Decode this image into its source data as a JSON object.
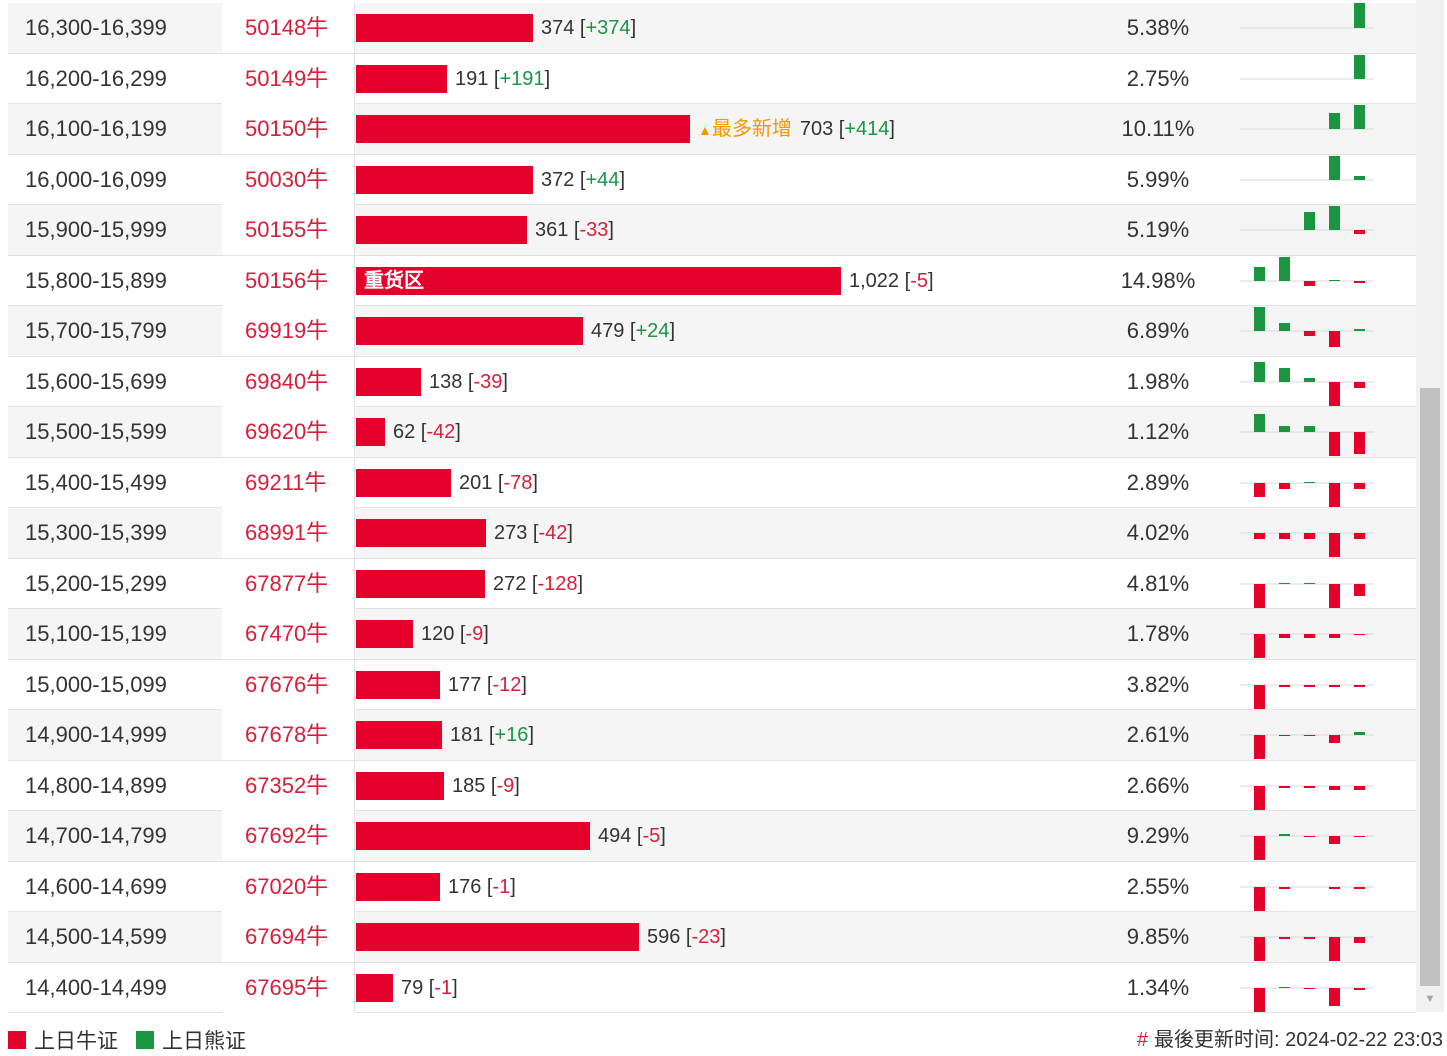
{
  "colors": {
    "bull": "#e5002b",
    "bear": "#1a9641",
    "code": "#d81e3a",
    "increase_tag": "#f39800"
  },
  "heavy_zone_label": "重货区",
  "most_new_label": "最多新增",
  "legend": {
    "bull": "上日牛证",
    "bear": "上日熊证"
  },
  "updated": {
    "hash": "#",
    "label": "最後更新时间:",
    "time": "2024-02-22 23:03"
  },
  "rows": [
    {
      "range": "16,300-16,399",
      "code": "50148牛",
      "count": "374",
      "change": "+374",
      "pct": "5.38%",
      "value": 374,
      "spark": [
        0,
        0,
        0,
        0,
        26
      ]
    },
    {
      "range": "16,200-16,299",
      "code": "50149牛",
      "count": "191",
      "change": "+191",
      "pct": "2.75%",
      "value": 191,
      "spark": [
        0,
        0,
        0,
        0,
        24
      ]
    },
    {
      "range": "16,100-16,199",
      "code": "50150牛",
      "count": "703",
      "change": "+414",
      "pct": "10.11%",
      "value": 703,
      "spark": [
        0,
        0,
        0,
        16,
        24
      ],
      "tag": "most_new"
    },
    {
      "range": "16,000-16,099",
      "code": "50030牛",
      "count": "372",
      "change": "+44",
      "pct": "5.99%",
      "value": 372,
      "spark": [
        0,
        0,
        0,
        24,
        4
      ]
    },
    {
      "range": "15,900-15,999",
      "code": "50155牛",
      "count": "361",
      "change": "-33",
      "pct": "5.19%",
      "value": 361,
      "spark": [
        0,
        0,
        18,
        24,
        -4
      ]
    },
    {
      "range": "15,800-15,899",
      "code": "50156牛",
      "count": "1,022",
      "change": "-5",
      "pct": "14.98%",
      "value": 1022,
      "spark": [
        14,
        24,
        -5,
        1,
        -2
      ],
      "tag": "heavy"
    },
    {
      "range": "15,700-15,799",
      "code": "69919牛",
      "count": "479",
      "change": "+24",
      "pct": "6.89%",
      "value": 479,
      "spark": [
        24,
        8,
        -5,
        -16,
        2
      ]
    },
    {
      "range": "15,600-15,699",
      "code": "69840牛",
      "count": "138",
      "change": "-39",
      "pct": "1.98%",
      "value": 138,
      "spark": [
        20,
        14,
        4,
        -24,
        -6
      ]
    },
    {
      "range": "15,500-15,599",
      "code": "69620牛",
      "count": "62",
      "change": "-42",
      "pct": "1.12%",
      "value": 62,
      "spark": [
        18,
        6,
        6,
        -24,
        -22
      ]
    },
    {
      "range": "15,400-15,499",
      "code": "69211牛",
      "count": "201",
      "change": "-78",
      "pct": "2.89%",
      "value": 201,
      "spark": [
        -14,
        -6,
        1,
        -24,
        -6
      ]
    },
    {
      "range": "15,300-15,399",
      "code": "68991牛",
      "count": "273",
      "change": "-42",
      "pct": "4.02%",
      "value": 273,
      "spark": [
        -6,
        -6,
        -6,
        -24,
        -6
      ]
    },
    {
      "range": "15,200-15,299",
      "code": "67877牛",
      "count": "272",
      "change": "-128",
      "pct": "4.81%",
      "value": 272,
      "spark": [
        -24,
        1,
        1,
        -24,
        -12
      ]
    },
    {
      "range": "15,100-15,199",
      "code": "67470牛",
      "count": "120",
      "change": "-9",
      "pct": "1.78%",
      "value": 120,
      "spark": [
        -24,
        -4,
        -4,
        -4,
        -1
      ]
    },
    {
      "range": "15,000-15,099",
      "code": "67676牛",
      "count": "177",
      "change": "-12",
      "pct": "3.82%",
      "value": 177,
      "spark": [
        -24,
        -2,
        -2,
        -2,
        -2
      ]
    },
    {
      "range": "14,900-14,999",
      "code": "67678牛",
      "count": "181",
      "change": "+16",
      "pct": "2.61%",
      "value": 181,
      "spark": [
        -24,
        -1,
        -1,
        -8,
        3
      ]
    },
    {
      "range": "14,800-14,899",
      "code": "67352牛",
      "count": "185",
      "change": "-9",
      "pct": "2.66%",
      "value": 185,
      "spark": [
        -24,
        -2,
        -2,
        -4,
        -4
      ]
    },
    {
      "range": "14,700-14,799",
      "code": "67692牛",
      "count": "494",
      "change": "-5",
      "pct": "9.29%",
      "value": 494,
      "spark": [
        -24,
        2,
        -1,
        -8,
        -1
      ]
    },
    {
      "range": "14,600-14,699",
      "code": "67020牛",
      "count": "176",
      "change": "-1",
      "pct": "2.55%",
      "value": 176,
      "spark": [
        -24,
        -2,
        0,
        -2,
        -2
      ]
    },
    {
      "range": "14,500-14,599",
      "code": "67694牛",
      "count": "596",
      "change": "-23",
      "pct": "9.85%",
      "value": 596,
      "spark": [
        -24,
        -2,
        -2,
        -24,
        -6
      ]
    },
    {
      "range": "14,400-14,499",
      "code": "67695牛",
      "count": "79",
      "change": "-1",
      "pct": "1.34%",
      "value": 79,
      "spark": [
        -24,
        1,
        -1,
        -18,
        -2
      ]
    }
  ]
}
